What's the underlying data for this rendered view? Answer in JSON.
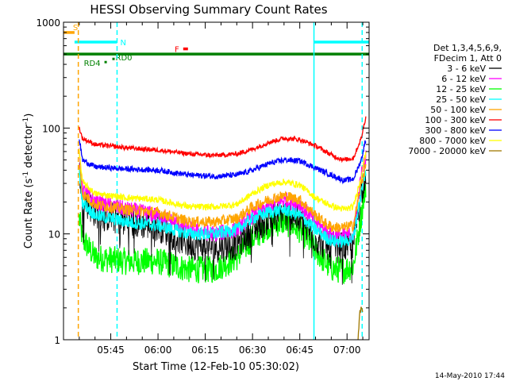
{
  "chart_data": {
    "type": "line",
    "title": "HESSI Observing Summary Count Rates",
    "xlabel": "Start Time (12-Feb-10 05:30:02)",
    "ylabel_main": "Count Rate (s",
    "ylabel_sup1": "-1",
    "ylabel_mid": " detector",
    "ylabel_sup2": "-1",
    "ylabel_end": ")",
    "y_scale": "log",
    "ylim": [
      1,
      1000
    ],
    "x_unit": "minutes since 05:30:02",
    "xlim": [
      0,
      97
    ],
    "x_ticks": [
      {
        "value": 15,
        "label": "05:45"
      },
      {
        "value": 30,
        "label": "06:00"
      },
      {
        "value": 45,
        "label": "06:15"
      },
      {
        "value": 60,
        "label": "06:30"
      },
      {
        "value": 75,
        "label": "06:45"
      },
      {
        "value": 90,
        "label": "07:00"
      }
    ],
    "y_ticks": [
      {
        "value": 1,
        "label": "1"
      },
      {
        "value": 10,
        "label": "10"
      },
      {
        "value": 100,
        "label": "100"
      },
      {
        "value": 1000,
        "label": "1000"
      }
    ],
    "legend": {
      "placement": "right",
      "header": [
        "Det 1,3,4,5,6,9,",
        "FDecim 1, Att 0"
      ]
    },
    "series": [
      {
        "name": "3 - 6 keV",
        "color": "#000000",
        "x": [
          5,
          6,
          10,
          20,
          30,
          40,
          48,
          55,
          60,
          65,
          70,
          75,
          80,
          84,
          86,
          89,
          92,
          94.5,
          96
        ],
        "values": [
          40,
          22,
          16,
          13,
          12,
          8,
          7.5,
          8,
          11,
          14,
          16,
          14,
          9,
          7.5,
          7.5,
          7.5,
          8,
          25,
          40
        ]
      },
      {
        "name": "6 - 12 keV",
        "color": "#ff00ff",
        "x": [
          5,
          6,
          10,
          20,
          30,
          40,
          48,
          55,
          60,
          65,
          70,
          75,
          80,
          84,
          86,
          89,
          92,
          94.5,
          96
        ],
        "values": [
          55,
          26,
          20,
          17,
          15,
          11,
          10,
          11,
          15,
          18,
          21,
          19,
          13,
          10,
          9.5,
          9.5,
          10,
          35,
          55
        ]
      },
      {
        "name": "12 - 25 keV",
        "color": "#00ff00",
        "x": [
          5,
          6,
          10,
          20,
          30,
          40,
          48,
          55,
          60,
          65,
          70,
          75,
          80,
          84,
          86,
          89,
          92,
          94.5,
          96
        ],
        "values": [
          14,
          9,
          6,
          5.5,
          5.5,
          4.6,
          4.6,
          6,
          9,
          12,
          13,
          11,
          7,
          5,
          4.6,
          4.6,
          5,
          15,
          30
        ]
      },
      {
        "name": "25 - 50 keV",
        "color": "#00ffff",
        "x": [
          5,
          6,
          10,
          20,
          30,
          40,
          48,
          55,
          60,
          65,
          70,
          75,
          80,
          84,
          86,
          89,
          92,
          94.5,
          96
        ],
        "values": [
          40,
          20,
          15,
          13,
          12,
          10,
          10,
          11,
          14,
          16,
          17,
          15,
          11,
          9,
          8.5,
          8.5,
          9,
          25,
          40
        ]
      },
      {
        "name": "50 - 100 keV",
        "color": "#ffa500",
        "x": [
          5,
          6,
          10,
          20,
          30,
          40,
          48,
          55,
          60,
          65,
          70,
          75,
          80,
          84,
          86,
          89,
          92,
          94.5,
          96
        ],
        "values": [
          45,
          24,
          19,
          17,
          16,
          13,
          13,
          14,
          18,
          21,
          23,
          21,
          15,
          12,
          11.5,
          11.5,
          12,
          30,
          45
        ]
      },
      {
        "name": "100 - 300 keV",
        "color": "#ff0000",
        "x": [
          5,
          6,
          10,
          20,
          30,
          40,
          48,
          55,
          60,
          65,
          70,
          75,
          80,
          84,
          86,
          89,
          92,
          94.5,
          96
        ],
        "values": [
          100,
          80,
          70,
          65,
          62,
          57,
          55,
          57,
          63,
          73,
          80,
          78,
          68,
          58,
          54,
          50,
          52,
          80,
          130
        ]
      },
      {
        "name": "300 - 800 keV",
        "color": "#0000ff",
        "x": [
          5,
          6,
          10,
          20,
          30,
          40,
          48,
          55,
          60,
          65,
          70,
          75,
          80,
          84,
          86,
          89,
          92,
          94.5,
          96
        ],
        "values": [
          80,
          50,
          43,
          41,
          40,
          36,
          35,
          36,
          40,
          46,
          50,
          49,
          42,
          37,
          35,
          32,
          33,
          50,
          80
        ]
      },
      {
        "name": "800 - 7000 keV",
        "color": "#ffff00",
        "x": [
          5,
          6,
          10,
          20,
          30,
          40,
          48,
          55,
          60,
          65,
          70,
          75,
          80,
          84,
          86,
          89,
          92,
          94.5,
          96
        ],
        "values": [
          60,
          31,
          24,
          22,
          21,
          18,
          18,
          19,
          24,
          29,
          31,
          29,
          22,
          19,
          18,
          17,
          18,
          35,
          60
        ]
      },
      {
        "name": "7000 - 20000 keV",
        "color": "#a07800",
        "x": [
          93.5,
          94,
          94.5,
          95
        ],
        "values": [
          1,
          1.8,
          2,
          1.8
        ]
      }
    ],
    "bars": [
      {
        "label": "S",
        "color": "#ffa500",
        "y": 800,
        "x": [
          0,
          3.5
        ]
      },
      {
        "label": "N",
        "color": "#00ffff",
        "y": 650,
        "x": [
          3.5,
          17
        ]
      },
      {
        "label": "",
        "color": "#00ffff",
        "y": 650,
        "x": [
          79.5,
          97
        ]
      },
      {
        "label": "F",
        "color": "#ff0000",
        "y": 560,
        "x": [
          38,
          39.5
        ]
      },
      {
        "label": "",
        "color": "#008000",
        "y": 500,
        "x": [
          0,
          97
        ]
      },
      {
        "label": "RD0",
        "color": "#008000",
        "y": 450,
        "x": [
          15.5,
          15.8
        ]
      },
      {
        "label": "RD4",
        "color": "#008000",
        "y": 420,
        "x": [
          13,
          13.3
        ]
      }
    ],
    "vlines": [
      {
        "x": 4.7,
        "color": "#ffa500",
        "dashed": true
      },
      {
        "x": 17,
        "color": "#00ffff",
        "dashed": true
      },
      {
        "x": 79.5,
        "color": "#00ffff",
        "dashed": false
      },
      {
        "x": 94.8,
        "color": "#00ffff",
        "dashed": true
      }
    ],
    "timestamp": "14-May-2010 17:44"
  }
}
